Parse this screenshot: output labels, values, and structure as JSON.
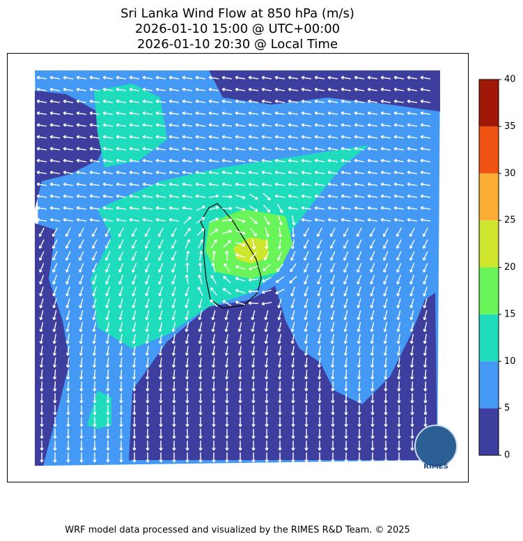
{
  "title": [
    "Sri Lanka Wind Flow at 850 hPa (m/s)",
    "2026-01-10 15:00 @ UTC+00:00",
    "2026-01-10 20:30 @ Local Time"
  ],
  "colorbar": {
    "levels": [
      0,
      5,
      10,
      15,
      20,
      25,
      30,
      35,
      40
    ],
    "colors": [
      "#3e3e9e",
      "#4499f5",
      "#1edcbc",
      "#69f55a",
      "#cfe62f",
      "#fbae33",
      "#ef5211",
      "#a11806"
    ]
  },
  "logo_text": "RIMES",
  "footer": "WRF model data processed and visualized by the RIMES R&D Team. © 2025"
}
